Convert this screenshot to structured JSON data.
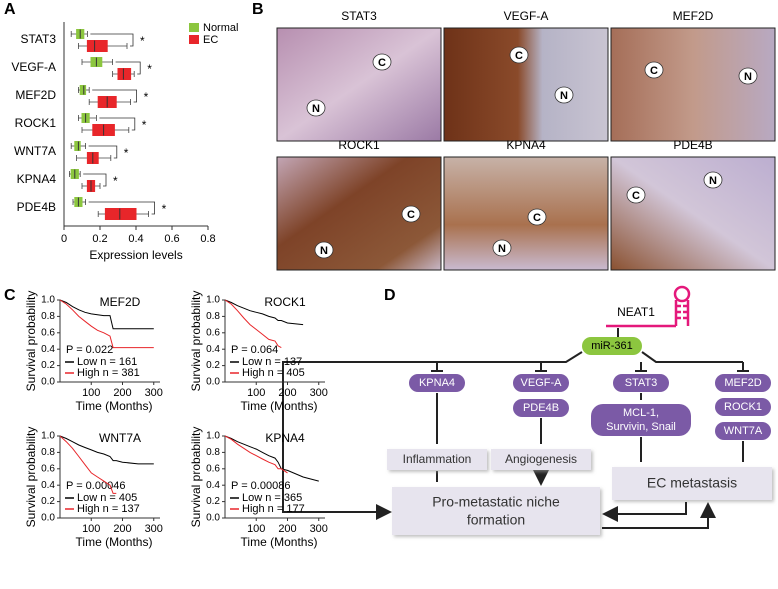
{
  "panel_labels": [
    "A",
    "B",
    "C",
    "D"
  ],
  "chart_data": [
    {
      "type": "box",
      "orientation": "horizontal",
      "categories": [
        "STAT3",
        "VEGF-A",
        "MEF2D",
        "ROCK1",
        "WNT7A",
        "KPNA4",
        "PDE4B"
      ],
      "series": [
        {
          "name": "Normal",
          "color": "#8cc63f",
          "values": [
            [
              0.04,
              0.07,
              0.09,
              0.11,
              0.13
            ],
            [
              0.1,
              0.15,
              0.18,
              0.21,
              0.27
            ],
            [
              0.08,
              0.09,
              0.11,
              0.12,
              0.14
            ],
            [
              0.08,
              0.1,
              0.12,
              0.14,
              0.18
            ],
            [
              0.04,
              0.06,
              0.08,
              0.09,
              0.12
            ],
            [
              0.03,
              0.04,
              0.06,
              0.08,
              0.09
            ],
            [
              0.05,
              0.06,
              0.08,
              0.1,
              0.12
            ]
          ]
        },
        {
          "name": "EC",
          "color": "#e8262a",
          "values": [
            [
              0.08,
              0.13,
              0.17,
              0.24,
              0.35
            ],
            [
              0.27,
              0.3,
              0.33,
              0.37,
              0.39
            ],
            [
              0.14,
              0.19,
              0.24,
              0.29,
              0.37
            ],
            [
              0.1,
              0.16,
              0.22,
              0.28,
              0.36
            ],
            [
              0.07,
              0.13,
              0.16,
              0.19,
              0.26
            ],
            [
              0.1,
              0.13,
              0.15,
              0.17,
              0.2
            ],
            [
              0.19,
              0.23,
              0.31,
              0.4,
              0.47
            ]
          ]
        }
      ],
      "significance": [
        "*",
        "*",
        "*",
        "*",
        "*",
        "*",
        "*"
      ],
      "xlabel": "Expression levels",
      "xlim": [
        0,
        0.8
      ],
      "xticks": [
        0,
        0.2,
        0.4,
        0.6,
        0.8
      ]
    },
    {
      "type": "line",
      "title": "MEF2D",
      "annotation": "P = 0.022",
      "xlabel": "Time (Months)",
      "ylabel": "Survival probability",
      "x": [
        0,
        20,
        40,
        60,
        80,
        100,
        120,
        140,
        160,
        170,
        180,
        200,
        250,
        300
      ],
      "xlim": [
        0,
        320
      ],
      "xticks": [
        100,
        200,
        300
      ],
      "ylim": [
        0,
        1
      ],
      "yticks": [
        {
          "value": 0,
          "label": "0.0"
        },
        0.2,
        0.4,
        0.6,
        0.8,
        {
          "value": 1,
          "label": "1.0"
        }
      ],
      "series": [
        {
          "name": "Low n = 161",
          "color": "#000000",
          "values": [
            1,
            0.97,
            0.92,
            0.88,
            0.85,
            0.83,
            0.82,
            0.81,
            0.81,
            0.65,
            0.65,
            0.65,
            0.65,
            0.65
          ]
        },
        {
          "name": "High n = 381",
          "color": "#e8262a",
          "values": [
            1,
            0.95,
            0.88,
            0.8,
            0.74,
            0.68,
            0.63,
            0.6,
            0.56,
            0.42,
            0.42,
            0.42,
            0.42,
            0.42
          ]
        }
      ]
    },
    {
      "type": "line",
      "title": "ROCK1",
      "annotation": "P = 0.064",
      "xlabel": "Time (Months)",
      "ylabel": "Survival probability",
      "x": [
        0,
        20,
        40,
        60,
        80,
        100,
        120,
        140,
        160,
        170,
        180,
        200,
        250,
        300
      ],
      "xlim": [
        0,
        320
      ],
      "xticks": [
        100,
        200,
        300
      ],
      "ylim": [
        0,
        1
      ],
      "yticks": [
        {
          "value": 0,
          "label": "0.0"
        },
        0.2,
        0.4,
        0.6,
        0.8,
        {
          "value": 1,
          "label": "1.0"
        }
      ],
      "series": [
        {
          "name": "Low n = 137",
          "color": "#000000",
          "values": [
            1,
            0.97,
            0.93,
            0.9,
            0.87,
            0.85,
            0.83,
            0.8,
            0.78,
            0.75,
            0.75,
            0.72,
            0.7,
            null
          ]
        },
        {
          "name": "High n = 405",
          "color": "#e8262a",
          "values": [
            1,
            0.95,
            0.87,
            0.78,
            0.7,
            0.64,
            0.58,
            0.52,
            0.5,
            0.44,
            0.42,
            null,
            null,
            null
          ]
        }
      ]
    },
    {
      "type": "line",
      "title": "WNT7A",
      "annotation": "P = 0.00046",
      "xlabel": "Time (Months)",
      "ylabel": "Survival probability",
      "x": [
        0,
        20,
        40,
        60,
        80,
        100,
        120,
        140,
        160,
        170,
        180,
        200,
        250,
        300
      ],
      "xlim": [
        0,
        320
      ],
      "xticks": [
        100,
        200,
        300
      ],
      "ylim": [
        0,
        1
      ],
      "yticks": [
        {
          "value": 0,
          "label": "0.0"
        },
        0.2,
        0.4,
        0.6,
        0.8,
        {
          "value": 1,
          "label": "1.0"
        }
      ],
      "series": [
        {
          "name": "Low n = 405",
          "color": "#000000",
          "values": [
            1,
            0.97,
            0.93,
            0.89,
            0.86,
            0.83,
            0.8,
            0.78,
            0.75,
            0.7,
            0.7,
            0.68,
            0.66,
            0.66
          ]
        },
        {
          "name": "High n = 137",
          "color": "#e8262a",
          "values": [
            1,
            0.93,
            0.85,
            0.75,
            0.65,
            0.55,
            0.5,
            0.45,
            0.4,
            0.3,
            0.3,
            null,
            null,
            null
          ]
        }
      ]
    },
    {
      "type": "line",
      "title": "KPNA4",
      "annotation": "P = 0.00086",
      "xlabel": "Time (Months)",
      "ylabel": "Survival probability",
      "x": [
        0,
        20,
        40,
        60,
        80,
        100,
        120,
        140,
        160,
        170,
        180,
        200,
        250,
        300
      ],
      "xlim": [
        0,
        320
      ],
      "xticks": [
        100,
        200,
        300
      ],
      "ylim": [
        0,
        1
      ],
      "yticks": [
        {
          "value": 0,
          "label": "0.0"
        },
        0.2,
        0.4,
        0.6,
        0.8,
        {
          "value": 1,
          "label": "1.0"
        }
      ],
      "series": [
        {
          "name": "Low n = 365",
          "color": "#000000",
          "values": [
            1,
            0.97,
            0.93,
            0.9,
            0.87,
            0.84,
            0.8,
            0.76,
            0.73,
            0.68,
            0.6,
            0.58,
            0.5,
            0.45
          ]
        },
        {
          "name": "High n = 177",
          "color": "#e8262a",
          "values": [
            1,
            0.96,
            0.9,
            0.85,
            0.8,
            0.76,
            0.72,
            0.68,
            0.65,
            0.6,
            0.6,
            0.55,
            null,
            null
          ]
        }
      ]
    }
  ],
  "images": [
    {
      "title": "STAT3",
      "marks": [
        "N",
        "C"
      ]
    },
    {
      "title": "VEGF-A",
      "marks": [
        "C",
        "N"
      ]
    },
    {
      "title": "MEF2D",
      "marks": [
        "C",
        "N"
      ]
    },
    {
      "title": "ROCK1",
      "marks": [
        "C",
        "N"
      ]
    },
    {
      "title": "KPNA4",
      "marks": [
        "C",
        "N"
      ]
    },
    {
      "title": "PDE4B",
      "marks": [
        "N",
        "C"
      ]
    }
  ],
  "diagram": {
    "nodes": [
      "NEAT1",
      "miR-361",
      "KPNA4",
      "VEGF-A",
      "PDE4B",
      "STAT3",
      [
        "MCL-1,",
        "Survivin, Snail"
      ],
      "MEF2D",
      "ROCK1",
      "WNT7A",
      "Inflammation",
      "Angiogenesis",
      "EC metastasis",
      [
        "Pro-metastatic niche",
        "formation"
      ]
    ]
  }
}
